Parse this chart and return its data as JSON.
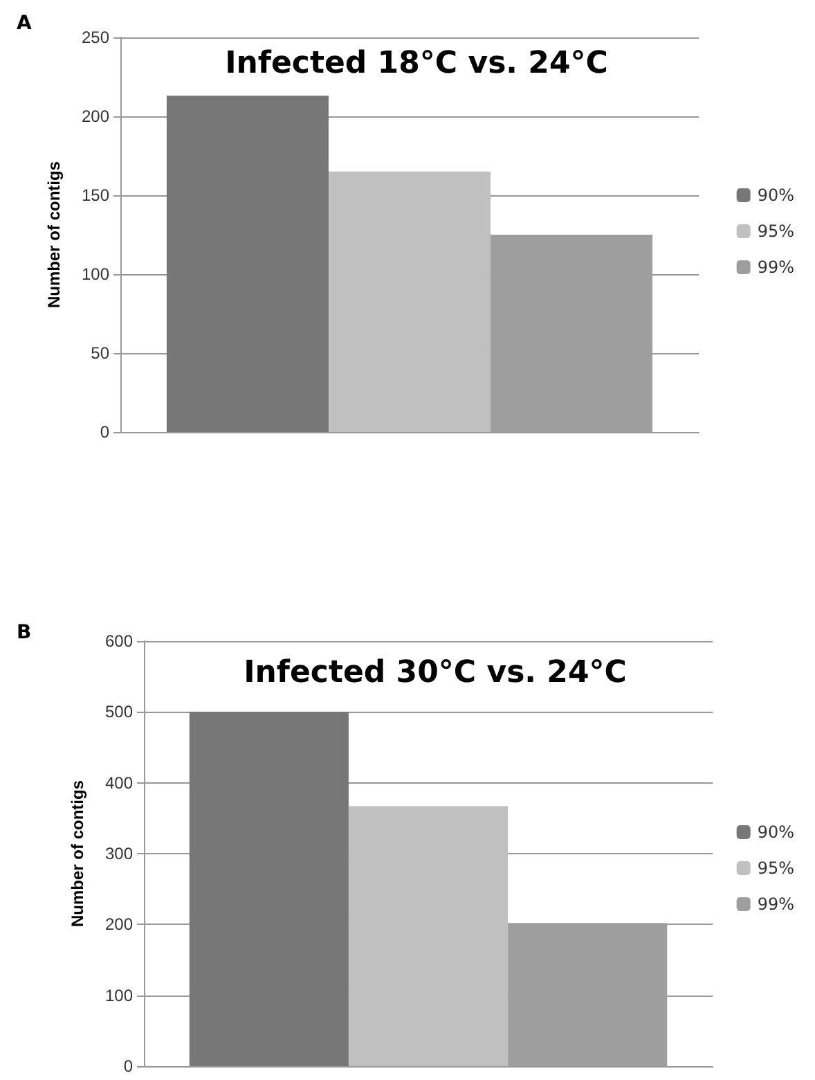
{
  "chart_data": [
    {
      "type": "bar",
      "title": "Infected 18°C vs. 24°C",
      "ylabel": "Number of contigs",
      "annotations": [
        "A"
      ],
      "categories": [
        null
      ],
      "series": [
        {
          "name": "90%",
          "color": "#777777",
          "values": [
            213
          ]
        },
        {
          "name": "95%",
          "color": "#c0c0c0",
          "values": [
            165
          ]
        },
        {
          "name": "99%",
          "color": "#9e9e9e",
          "values": [
            125
          ]
        }
      ],
      "ylim": [
        0,
        250
      ],
      "yticks": [
        0,
        50,
        100,
        150,
        200,
        250
      ],
      "grid": "y",
      "legend": "right"
    },
    {
      "type": "bar",
      "title": "Infected 30°C vs. 24°C",
      "ylabel": "Number of contigs",
      "annotations": [
        "B"
      ],
      "categories": [
        null
      ],
      "series": [
        {
          "name": "90%",
          "color": "#777777",
          "values": [
            500
          ]
        },
        {
          "name": "95%",
          "color": "#c0c0c0",
          "values": [
            367
          ]
        },
        {
          "name": "99%",
          "color": "#9e9e9e",
          "values": [
            202
          ]
        }
      ],
      "ylim": [
        0,
        600
      ],
      "yticks": [
        0,
        100,
        200,
        300,
        400,
        500,
        600
      ],
      "grid": "y",
      "legend": "right"
    }
  ]
}
